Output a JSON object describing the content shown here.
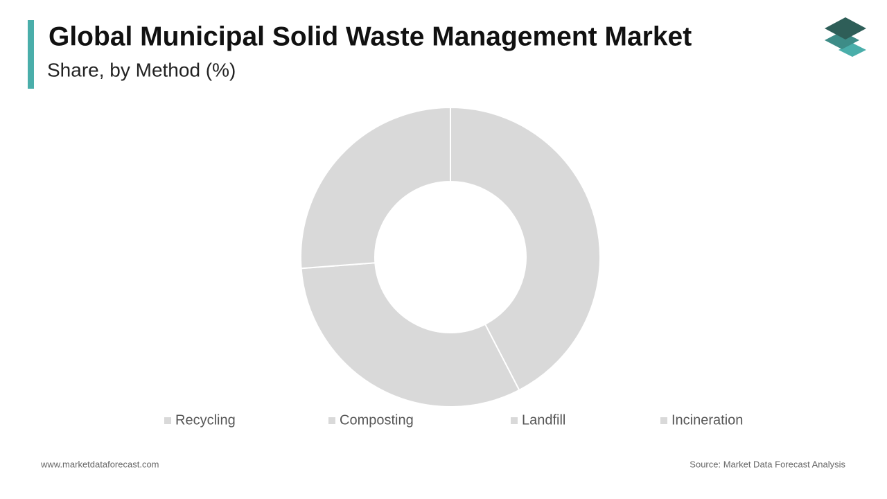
{
  "chart_data": {
    "type": "pie",
    "donut": true,
    "title": "Global Municipal Solid Waste Management Market",
    "subtitle": "Share, by Method (%)",
    "categories": [
      "Recycling",
      "Composting",
      "Landfill",
      "Incineration"
    ],
    "values": [
      42.4,
      31.4,
      26.2,
      0
    ],
    "colors": [
      "#d9d9d9",
      "#d9d9d9",
      "#d9d9d9",
      "#d9d9d9"
    ],
    "legend": "bottom"
  },
  "footer": {
    "website": "www.marketdataforecast.com",
    "source": "Source: Market Data Forecast Analysis"
  }
}
